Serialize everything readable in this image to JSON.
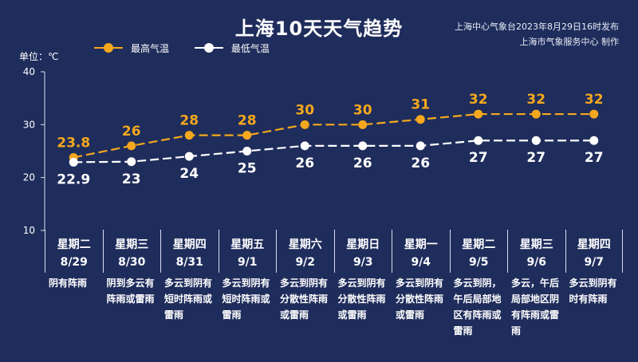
{
  "title": "上海10天天气趋势",
  "source": {
    "line1": "上海中心气象台2023年8月29日16时发布",
    "line2": "上海市气象服务中心 制作"
  },
  "unit_label": "单位：℃",
  "colors": {
    "high": "#f5a81d",
    "low": "#ffffff",
    "background": "#1f2d5c"
  },
  "chart_data": {
    "type": "line",
    "title": "上海10天天气趋势",
    "ylim": [
      10,
      40
    ],
    "yticks": [
      10,
      20,
      30,
      40
    ],
    "grid": false,
    "legend_position": "top-left",
    "categories": [
      "8/29",
      "8/30",
      "8/31",
      "9/1",
      "9/2",
      "9/3",
      "9/4",
      "9/5",
      "9/6",
      "9/7"
    ],
    "weekdays": [
      "星期二",
      "星期三",
      "星期四",
      "星期五",
      "星期六",
      "星期日",
      "星期一",
      "星期二",
      "星期三",
      "星期四"
    ],
    "series": [
      {
        "name": "最高气温",
        "values": [
          23.8,
          26,
          28,
          28,
          30,
          30,
          31,
          32,
          32,
          32
        ]
      },
      {
        "name": "最低气温",
        "values": [
          22.9,
          23,
          24,
          25,
          26,
          26,
          26,
          27,
          27,
          27
        ]
      }
    ],
    "weather": [
      "阴有阵雨",
      "阴到多云有阵雨或雷雨",
      "多云到阴有短时阵雨或雷雨",
      "多云到阴有短时阵雨或雷雨",
      "多云到阴有分散性阵雨或雷雨",
      "多云到阴有分散性阵雨或雷雨",
      "多云到阴有分散性阵雨或雷雨",
      "多云到阴，午后局部地区有阵雨或雷雨",
      "多云，午后局部地区阴有阵雨或雷雨",
      "多云到阴有时有阵雨"
    ]
  }
}
